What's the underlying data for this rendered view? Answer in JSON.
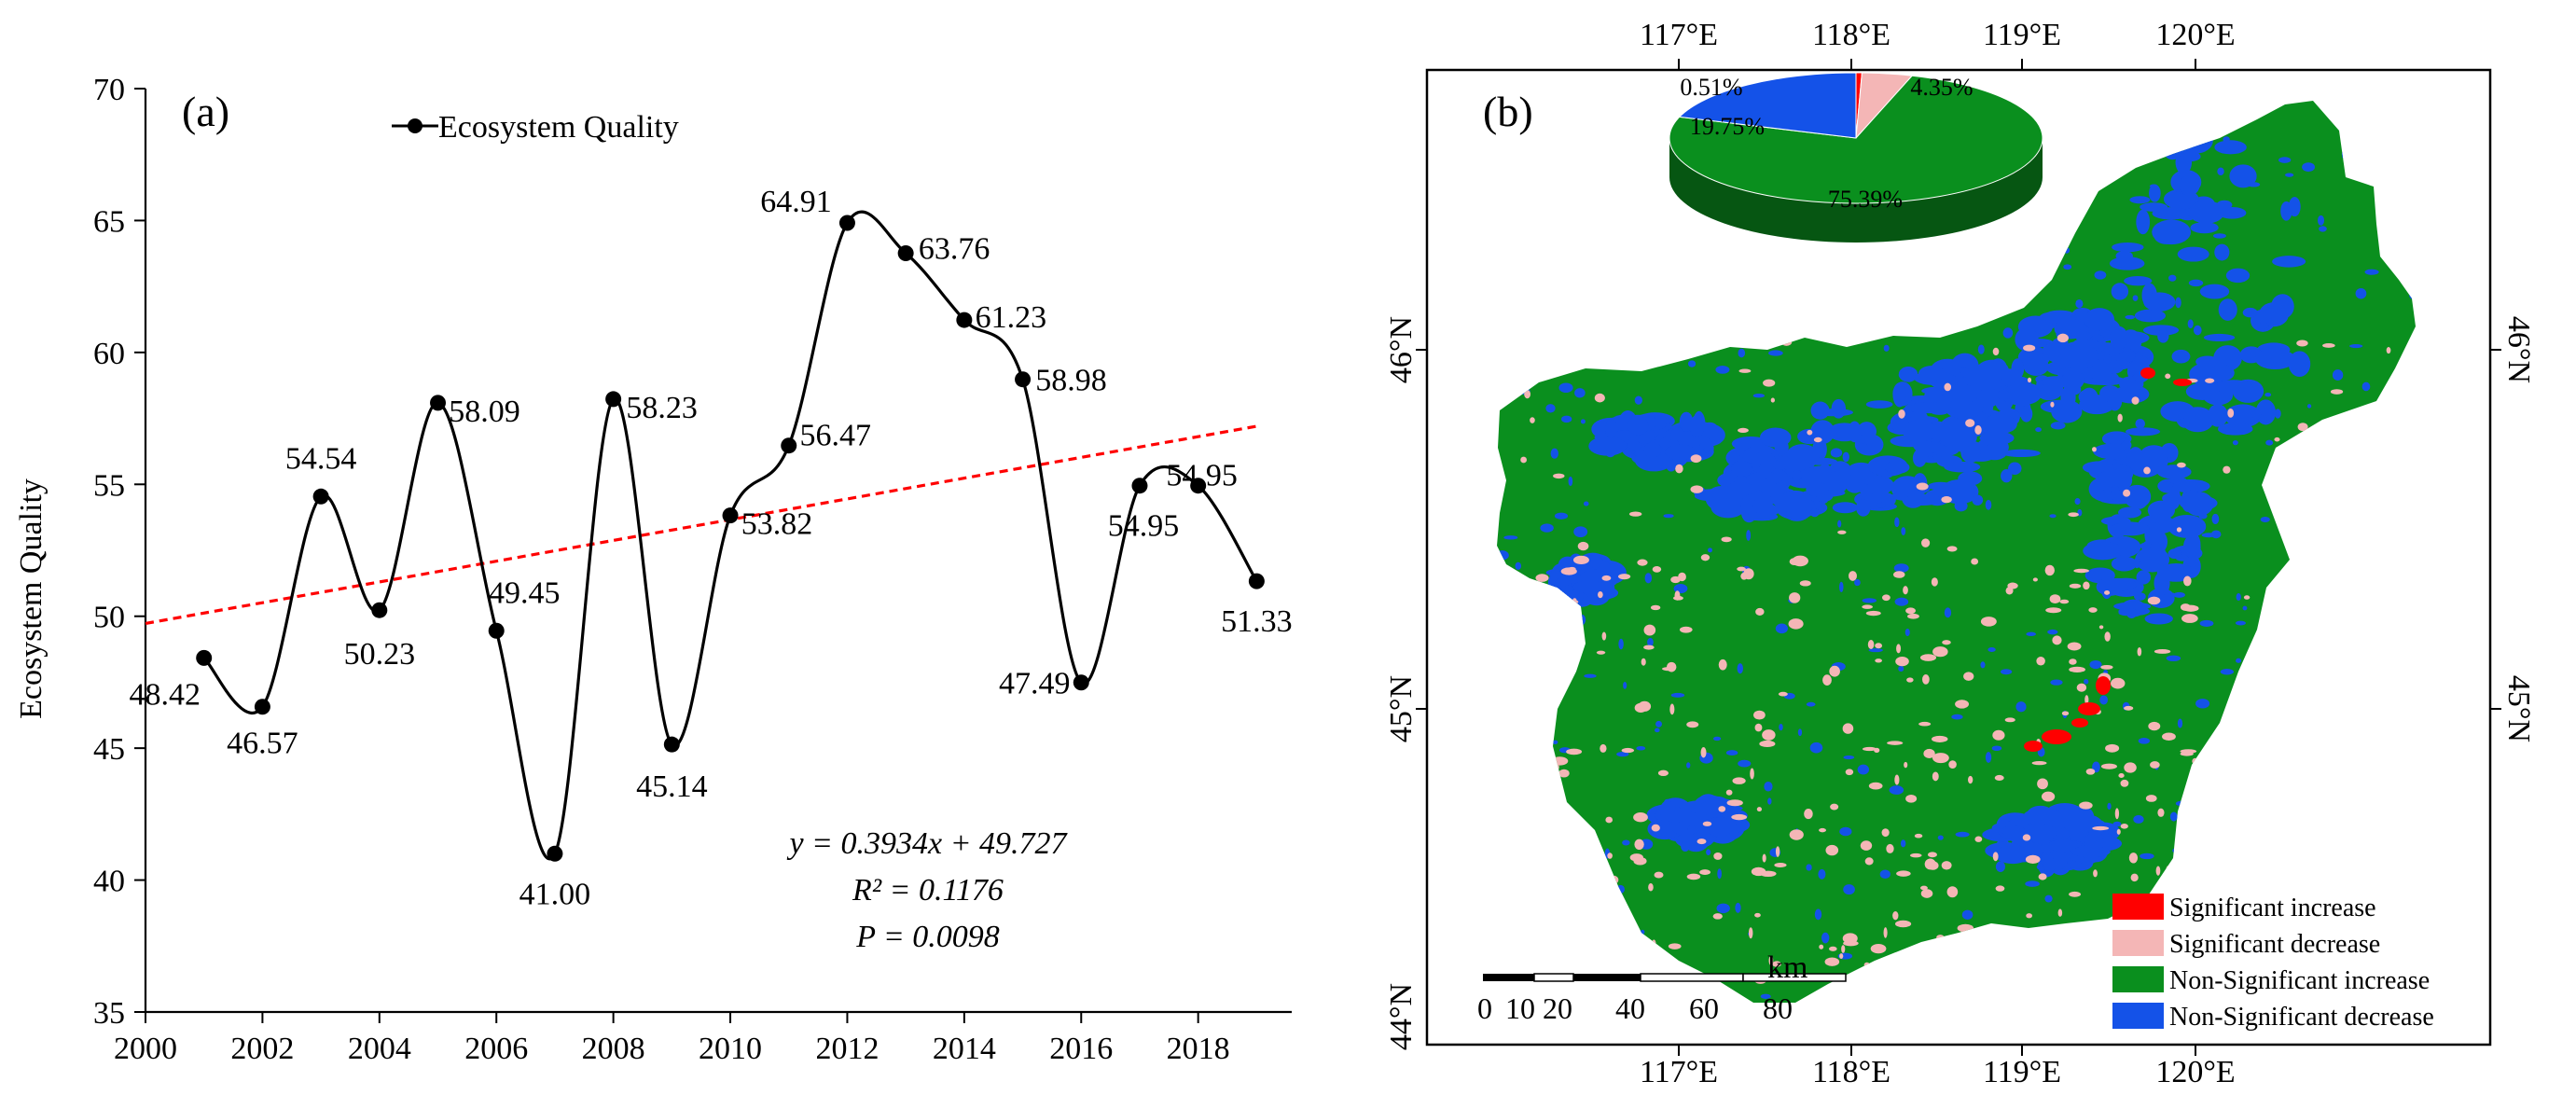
{
  "chart_data": [
    {
      "type": "line",
      "panel_label": "(a)",
      "ylabel": "Ecosystem Quality",
      "xlabel": "",
      "xlim": [
        2000,
        2019.6
      ],
      "ylim": [
        35,
        70
      ],
      "x_ticks": [
        "2000",
        "2002",
        "2004",
        "2006",
        "2008",
        "2010",
        "2012",
        "2014",
        "2016",
        "2018"
      ],
      "x_tick_values": [
        2000,
        2002,
        2004,
        2006,
        2008,
        2010,
        2012,
        2014,
        2016,
        2018
      ],
      "y_ticks": [
        "35",
        "40",
        "45",
        "50",
        "55",
        "60",
        "65",
        "70"
      ],
      "y_tick_values": [
        35,
        40,
        45,
        50,
        55,
        60,
        65,
        70
      ],
      "legend": "Ecosystem Quality",
      "series": [
        {
          "name": "Ecosystem Quality",
          "color": "#000000",
          "x": [
            2001,
            2002,
            2003,
            2004,
            2005,
            2006,
            2007,
            2008,
            2009,
            2010,
            2011,
            2012,
            2013,
            2014,
            2015,
            2016,
            2017,
            2018,
            2019
          ],
          "values": [
            48.42,
            46.57,
            54.54,
            50.23,
            58.09,
            49.45,
            41.0,
            58.23,
            45.14,
            53.82,
            56.47,
            64.91,
            63.76,
            61.23,
            58.98,
            47.49,
            54.95,
            54.95,
            51.33
          ],
          "labels": [
            "48.42",
            "46.57",
            "54.54",
            "50.23",
            "58.09",
            "49.45",
            "41.00",
            "58.23",
            "45.14",
            "53.82",
            "56.47",
            "64.91",
            "63.76",
            "61.23",
            "58.98",
            "47.49",
            "54.95",
            "54.95",
            "51.33"
          ]
        }
      ],
      "trend": {
        "slope": 0.3934,
        "intercept": 49.727,
        "color": "#ff0000"
      },
      "annotation": {
        "eq": "y = 0.3934x + 49.727",
        "r2": "R² = 0.1176",
        "p": "P = 0.0098"
      }
    },
    {
      "type": "pie",
      "panel_label": "(b)",
      "slices": [
        {
          "label": "Significant increase",
          "pct_label": "0.51%",
          "value": 0.51,
          "color": "#ff0000"
        },
        {
          "label": "Significant decrease",
          "pct_label": "4.35%",
          "value": 4.35,
          "color": "#f4b6b6"
        },
        {
          "label": "Non-Significant increase",
          "pct_label": "75.39%",
          "value": 75.39,
          "color": "#0a8f1e"
        },
        {
          "label": "Non-Significant decrease",
          "pct_label": "19.75%",
          "value": 19.75,
          "color": "#1452e8"
        }
      ]
    }
  ],
  "map": {
    "lon_ticks": [
      "117°E",
      "118°E",
      "119°E",
      "120°E"
    ],
    "lat_ticks": [
      "46°N",
      "45°N",
      "44°N"
    ],
    "scale_numbers": [
      "0",
      "10",
      "20",
      "40",
      "60",
      "80"
    ],
    "scale_unit": "km",
    "legend": [
      {
        "label": "Significant increase",
        "color": "#ff0000"
      },
      {
        "label": "Significant decrease",
        "color": "#f4b6b6"
      },
      {
        "label": "Non-Significant increase",
        "color": "#0a8f1e"
      },
      {
        "label": "Non-Significant decrease",
        "color": "#1452e8"
      }
    ]
  }
}
